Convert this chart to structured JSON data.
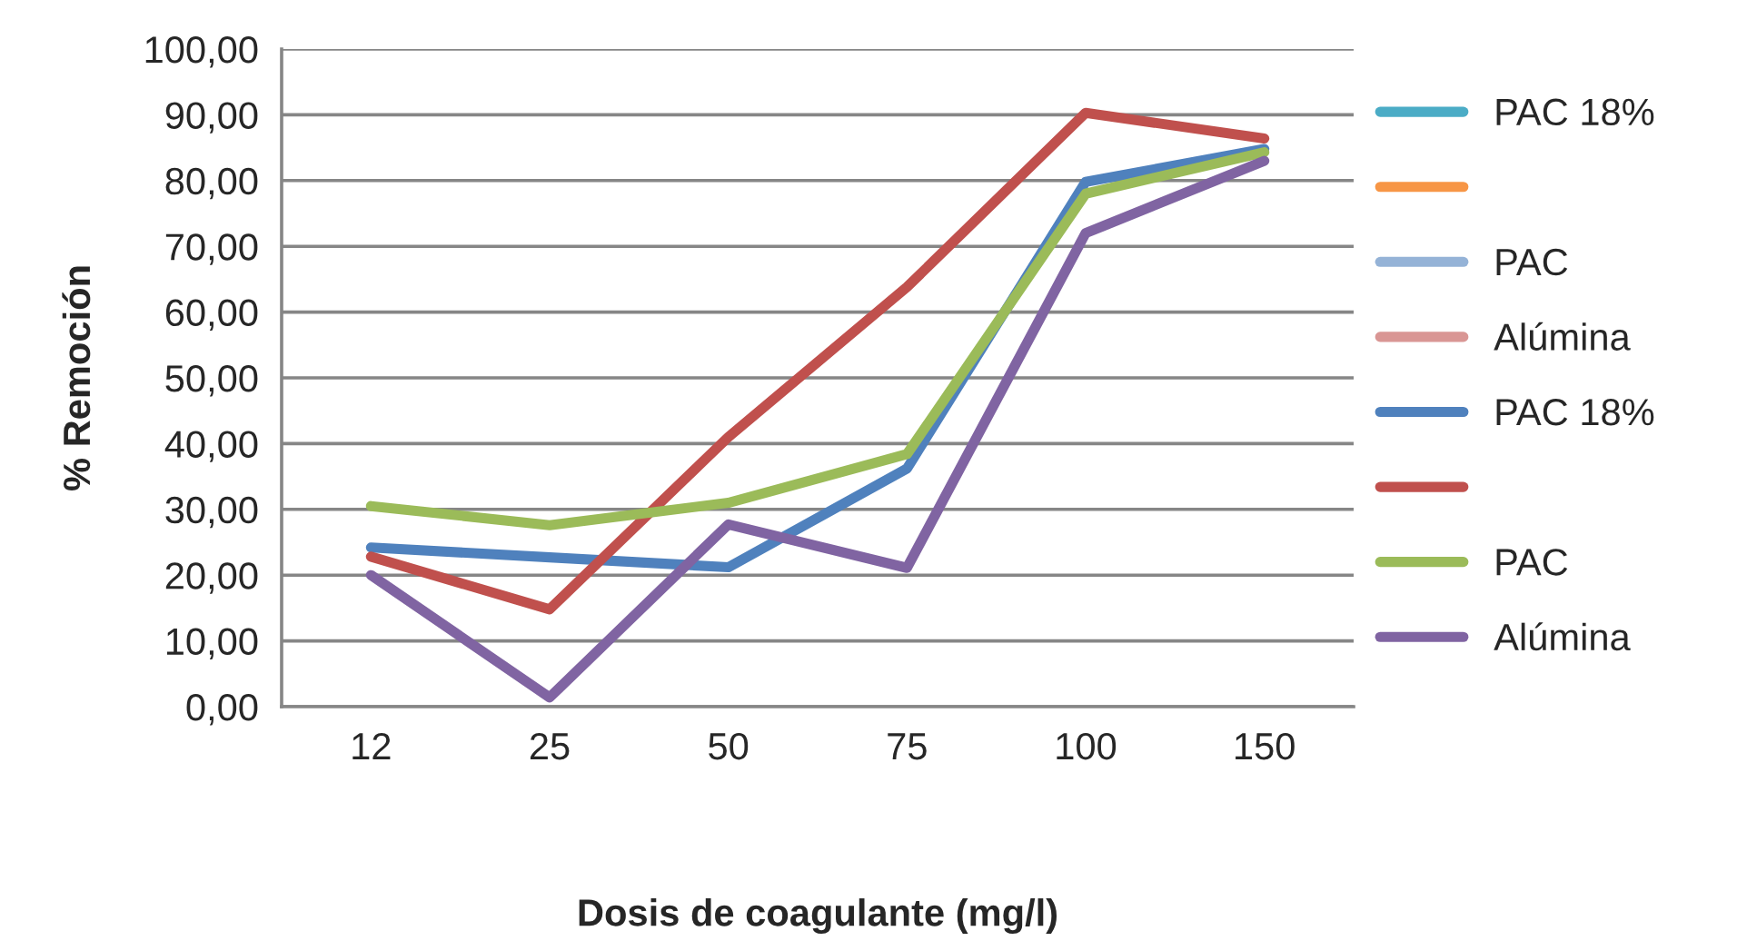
{
  "chart_data": {
    "type": "line",
    "xlabel": "Dosis de coagulante (mg/l)",
    "ylabel": "% Remoción",
    "categories": [
      "12",
      "25",
      "50",
      "75",
      "100",
      "150"
    ],
    "ylim": [
      0,
      100
    ],
    "yticks": [
      {
        "value": 0,
        "label": "0,00"
      },
      {
        "value": 10,
        "label": "10,00"
      },
      {
        "value": 20,
        "label": "20,00"
      },
      {
        "value": 30,
        "label": "30,00"
      },
      {
        "value": 40,
        "label": "40,00"
      },
      {
        "value": 50,
        "label": "50,00"
      },
      {
        "value": 60,
        "label": "60,00"
      },
      {
        "value": 70,
        "label": "70,00"
      },
      {
        "value": 80,
        "label": "80,00"
      },
      {
        "value": 90,
        "label": "90,00"
      },
      {
        "value": 100,
        "label": "100,00"
      }
    ],
    "grid": "y",
    "legend": "right",
    "marker": "none",
    "line_style": "solid",
    "series": [
      {
        "name": "PAC 18%",
        "color": "#4bacc6",
        "values": [
          null,
          null,
          null,
          null,
          null,
          null
        ]
      },
      {
        "color": "#f79646",
        "values": [
          null,
          null,
          null,
          null,
          null,
          null
        ]
      },
      {
        "name": "PAC",
        "color": "#95b3d7",
        "values": [
          null,
          null,
          null,
          null,
          null,
          null
        ]
      },
      {
        "name": "Alúmina",
        "color": "#d99694",
        "values": [
          null,
          null,
          null,
          null,
          null,
          null
        ]
      },
      {
        "name": "PAC 18%",
        "color": "#4f81bd",
        "values": [
          24.2,
          22.7,
          21.2,
          36.2,
          79.8,
          84.8
        ]
      },
      {
        "color": "#c0504d",
        "values": [
          22.8,
          14.8,
          41.0,
          63.8,
          90.3,
          86.4
        ]
      },
      {
        "name": "PAC",
        "color": "#9bbb59",
        "values": [
          30.5,
          27.6,
          31.0,
          38.4,
          78.0,
          84.3
        ]
      },
      {
        "name": "Alúmina",
        "color": "#8064a2",
        "values": [
          20.0,
          1.4,
          27.7,
          21.1,
          72.0,
          83.0
        ]
      }
    ]
  }
}
